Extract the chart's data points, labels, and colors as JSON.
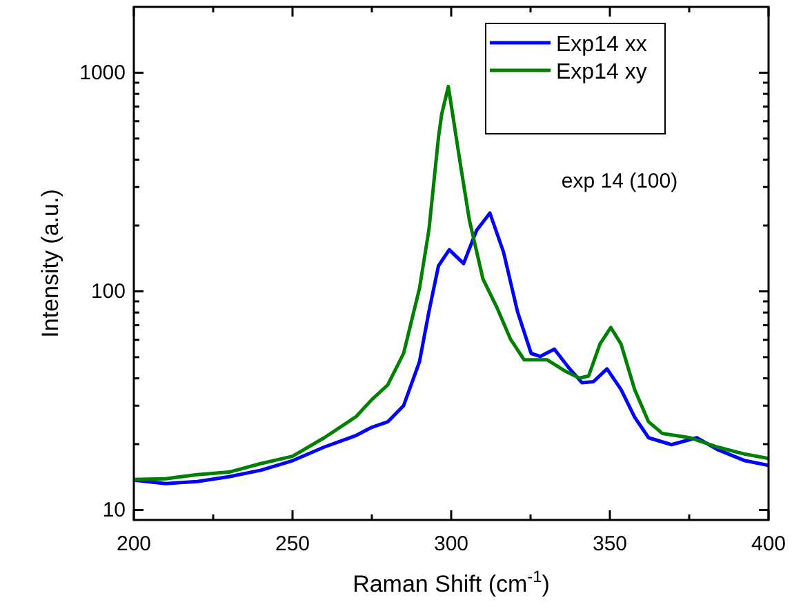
{
  "chart_data": {
    "type": "line",
    "xlabel": "Raman Shift (cm$^{-1}$)",
    "ylabel": "Intensity (a.u.)",
    "annotations": [
      "exp 14 (100)"
    ],
    "log": "y",
    "legend": "top right",
    "grid": false,
    "line_style": "solid",
    "marker": "none",
    "xlim": [
      200,
      400
    ],
    "ylim": [
      9,
      2000
    ],
    "xticks": [
      200,
      {
        "value": 225,
        "label": null
      },
      250,
      {
        "value": 275,
        "label": null
      },
      300,
      {
        "value": 325,
        "label": null
      },
      350,
      {
        "value": 375,
        "label": null
      },
      400
    ],
    "yticks": [
      10,
      {
        "value": 20,
        "label": null
      },
      {
        "value": 30,
        "label": null
      },
      {
        "value": 40,
        "label": null
      },
      {
        "value": 50,
        "label": null
      },
      {
        "value": 60,
        "label": null
      },
      {
        "value": 70,
        "label": null
      },
      {
        "value": 80,
        "label": null
      },
      {
        "value": 90,
        "label": null
      },
      100,
      {
        "value": 200,
        "label": null
      },
      {
        "value": 300,
        "label": null
      },
      {
        "value": 400,
        "label": null
      },
      {
        "value": 500,
        "label": null
      },
      {
        "value": 600,
        "label": null
      },
      {
        "value": 700,
        "label": null
      },
      {
        "value": 800,
        "label": null
      },
      {
        "value": 900,
        "label": null
      },
      1000
    ],
    "series": [
      {
        "name": "Exp14 xx",
        "color": "#0000ff",
        "x": [
          200,
          210,
          220,
          230,
          240,
          250,
          260,
          270,
          275,
          280,
          285,
          290,
          293,
          296,
          299.4,
          303.9,
          308,
          312.2,
          316.5,
          320.9,
          325.2,
          328.1,
          332.5,
          336.8,
          341.2,
          344.8,
          349.1,
          353.5,
          357.8,
          362.2,
          369.4,
          377.4,
          383.9,
          392.6,
          400
        ],
        "values": [
          13.7,
          13.2,
          13.5,
          14.2,
          15.2,
          16.8,
          19.4,
          21.9,
          23.9,
          25.3,
          30,
          47.6,
          81,
          131,
          155,
          134,
          190,
          228,
          151,
          80.7,
          52,
          50.4,
          54.4,
          45.2,
          38.2,
          38.6,
          44.2,
          35.6,
          26.6,
          21.4,
          19.9,
          21.4,
          18.9,
          16.8,
          16.0
        ]
      },
      {
        "name": "Exp14 xy",
        "color": "#008000",
        "x": [
          200,
          210,
          220,
          230,
          240,
          250,
          260,
          270,
          275,
          280,
          285,
          290,
          293,
          296,
          297,
          299.1,
          302.7,
          305.7,
          310,
          314.3,
          318.7,
          323,
          330.3,
          336,
          340.4,
          343.3,
          346.9,
          350.3,
          353.5,
          357.8,
          362.2,
          366.5,
          375.2,
          383.9,
          392.6,
          400
        ],
        "values": [
          13.8,
          13.9,
          14.5,
          14.9,
          16.3,
          17.6,
          21.4,
          26.7,
          32,
          37.3,
          52,
          103,
          192,
          507,
          645,
          865,
          398,
          213,
          114,
          85,
          60.4,
          48.6,
          48.6,
          43.1,
          40.1,
          41,
          57.5,
          68.3,
          57.5,
          35.6,
          25.3,
          22.4,
          21.4,
          19.4,
          18.0,
          17.2
        ]
      }
    ]
  }
}
